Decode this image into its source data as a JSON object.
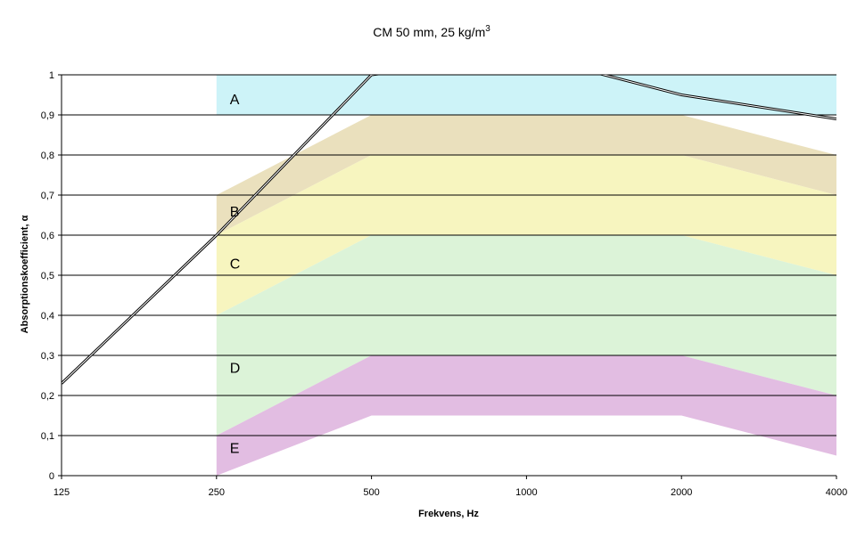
{
  "chart_data": {
    "type": "line",
    "title": "CM 50 mm, 25 kg/m",
    "title_superscript": "3",
    "xlabel": "Frekvens, Hz",
    "ylabel": "Absorptionskoefficient, α",
    "x_scale": "log",
    "x_ticks": [
      125,
      250,
      500,
      1000,
      2000,
      4000
    ],
    "x_tick_labels": [
      "125",
      "250",
      "500",
      "1000",
      "2000",
      "4000"
    ],
    "ylim": [
      0,
      1
    ],
    "y_ticks": [
      0,
      0.1,
      0.2,
      0.3,
      0.4,
      0.5,
      0.6,
      0.7,
      0.8,
      0.9,
      1
    ],
    "y_tick_labels": [
      "0",
      "0,1",
      "0,2",
      "0,3",
      "0,4",
      "0,5",
      "0,6",
      "0,7",
      "0,8",
      "0,9",
      "1"
    ],
    "grid": "horizontal",
    "series": [
      {
        "x": [
          125,
          250,
          500,
          1000,
          2000,
          4000
        ],
        "y": [
          0.23,
          0.6,
          1.0,
          1.05,
          0.95,
          0.89
        ],
        "color": "#000000"
      }
    ],
    "zones": [
      {
        "label": "A",
        "x": [
          250,
          500,
          2000,
          4000
        ],
        "upper": [
          1.0,
          1.0,
          1.0,
          1.0
        ],
        "lower": [
          0.9,
          0.9,
          0.9,
          0.9
        ],
        "color": "#cdf3f8",
        "label_x": 250,
        "label_y": 0.94
      },
      {
        "label": "B",
        "x": [
          250,
          500,
          2000,
          4000
        ],
        "upper": [
          0.7,
          0.9,
          0.9,
          0.8
        ],
        "lower": [
          0.6,
          0.8,
          0.8,
          0.7
        ],
        "color": "#eae0bd",
        "label_x": 250,
        "label_y": 0.66
      },
      {
        "label": "C",
        "x": [
          250,
          500,
          2000,
          4000
        ],
        "upper": [
          0.6,
          0.8,
          0.8,
          0.7
        ],
        "lower": [
          0.4,
          0.6,
          0.6,
          0.5
        ],
        "color": "#f7f5bf",
        "label_x": 250,
        "label_y": 0.53
      },
      {
        "label": "D",
        "x": [
          250,
          500,
          2000,
          4000
        ],
        "upper": [
          0.4,
          0.6,
          0.6,
          0.5
        ],
        "lower": [
          0.1,
          0.3,
          0.3,
          0.2
        ],
        "color": "#dcf3d8",
        "label_x": 250,
        "label_y": 0.27
      },
      {
        "label": "E",
        "x": [
          250,
          500,
          2000,
          4000
        ],
        "upper": [
          0.1,
          0.3,
          0.3,
          0.2
        ],
        "lower": [
          0.0,
          0.15,
          0.15,
          0.05
        ],
        "color": "#e2bde2",
        "label_x": 250,
        "label_y": 0.07
      }
    ]
  }
}
